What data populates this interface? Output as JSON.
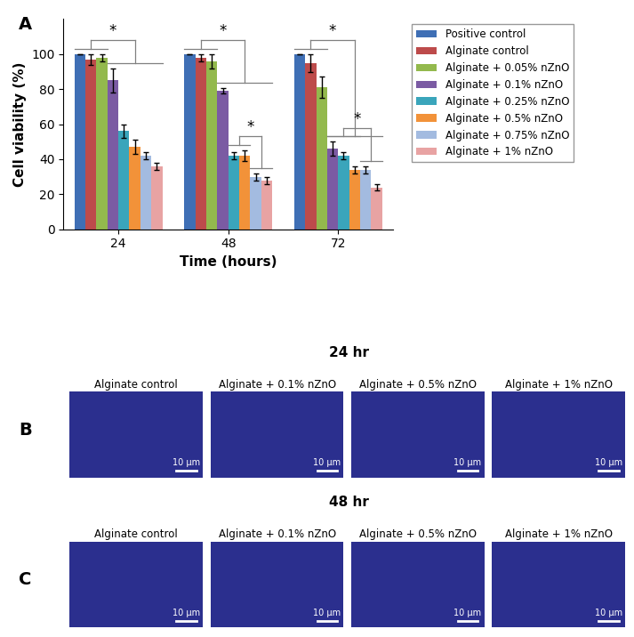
{
  "chart_data": {
    "type": "bar",
    "panel": "A",
    "xlabel": "Time (hours)",
    "ylabel": "Cell viability (%)",
    "categories": [
      "24",
      "48",
      "72"
    ],
    "ylim": [
      0,
      120
    ],
    "yticks": [
      0,
      20,
      40,
      60,
      80,
      100
    ],
    "legend": "upper left",
    "series": [
      {
        "name": "Positive control",
        "color": "#3f6fb5",
        "values": [
          100,
          100,
          100
        ],
        "errors": [
          0,
          0,
          0
        ]
      },
      {
        "name": "Alginate control",
        "color": "#bd4b4b",
        "values": [
          97,
          98,
          95
        ],
        "errors": [
          3,
          2,
          5
        ]
      },
      {
        "name": "Alginate + 0.05% nZnO",
        "color": "#93b94d",
        "values": [
          98,
          96,
          81
        ],
        "errors": [
          2,
          4,
          6
        ]
      },
      {
        "name": "Alginate + 0.1% nZnO",
        "color": "#7b5ba3",
        "values": [
          85,
          79,
          46
        ],
        "errors": [
          7,
          1.5,
          4
        ]
      },
      {
        "name": "Alginate + 0.25% nZnO",
        "color": "#3aa5bb",
        "values": [
          56,
          42,
          42
        ],
        "errors": [
          4,
          2,
          2
        ]
      },
      {
        "name": "Alginate + 0.5% nZnO",
        "color": "#f29239",
        "values": [
          47,
          42,
          34
        ],
        "errors": [
          4,
          3,
          2
        ]
      },
      {
        "name": "Alginate + 0.75% nZnO",
        "color": "#a3bbe0",
        "values": [
          42,
          30,
          34
        ],
        "errors": [
          2,
          2,
          2
        ]
      },
      {
        "name": "Alginate + 1% nZnO",
        "color": "#e8a3a3",
        "values": [
          36,
          28,
          24
        ],
        "errors": [
          2,
          2,
          2
        ]
      }
    ],
    "significance": [
      {
        "category_index": 0,
        "left": [
          0,
          2
        ],
        "right": [
          3,
          7
        ],
        "text": "*"
      },
      {
        "category_index": 1,
        "left": [
          0,
          2
        ],
        "right": [
          3,
          7
        ],
        "text": "*"
      },
      {
        "category_index": 1,
        "left": [
          4,
          5
        ],
        "right": [
          6,
          7
        ],
        "text": "*"
      },
      {
        "category_index": 2,
        "left": [
          0,
          2
        ],
        "right": [
          3,
          7
        ],
        "text": "*"
      },
      {
        "category_index": 2,
        "left": [
          3,
          5
        ],
        "right": [
          6,
          7
        ],
        "text": "*"
      }
    ]
  },
  "image_panels": [
    {
      "panel": "B",
      "title": "24 hr",
      "images": [
        {
          "title": "Alginate control",
          "scale_bar": "10 µm"
        },
        {
          "title": "Alginate + 0.1% nZnO",
          "scale_bar": "10 µm"
        },
        {
          "title": "Alginate + 0.5% nZnO",
          "scale_bar": "10 µm"
        },
        {
          "title": "Alginate + 1% nZnO",
          "scale_bar": "10 µm"
        }
      ]
    },
    {
      "panel": "C",
      "title": "48 hr",
      "images": [
        {
          "title": "Alginate control",
          "scale_bar": "10 µm"
        },
        {
          "title": "Alginate + 0.1% nZnO",
          "scale_bar": "10 µm"
        },
        {
          "title": "Alginate + 0.5% nZnO",
          "scale_bar": "10 µm"
        },
        {
          "title": "Alginate + 1% nZnO",
          "scale_bar": "10 µm"
        }
      ]
    }
  ]
}
